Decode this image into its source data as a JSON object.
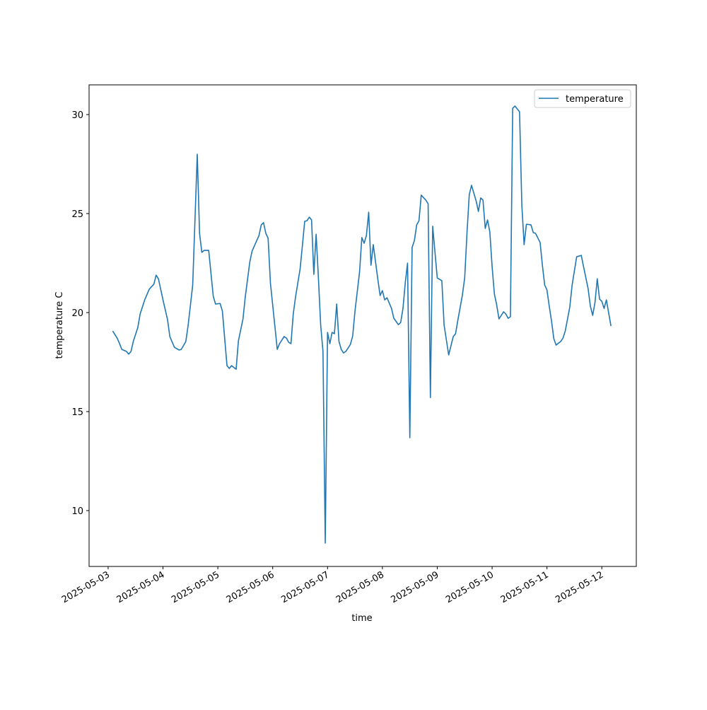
{
  "chart_data": {
    "type": "line",
    "xlabel": "time",
    "ylabel": "temperature C",
    "legend": "upper right",
    "xlim": [
      "2025-05-02 15:40",
      "2025-05-12 15:05"
    ],
    "xticks": [
      "2025-05-03",
      "2025-05-04",
      "2025-05-05",
      "2025-05-06",
      "2025-05-07",
      "2025-05-08",
      "2025-05-09",
      "2025-05-10",
      "2025-05-11",
      "2025-05-12"
    ],
    "ylim": [
      7.18,
      31.5
    ],
    "yticks": [
      10,
      15,
      20,
      25,
      30
    ],
    "x": [
      "2025-05-03 02:00",
      "2025-05-03 04:00",
      "2025-05-03 05:00",
      "2025-05-03 06:00",
      "2025-05-03 08:00",
      "2025-05-03 09:00",
      "2025-05-03 10:00",
      "2025-05-03 11:00",
      "2025-05-03 13:00",
      "2025-05-03 14:00",
      "2025-05-03 16:00",
      "2025-05-03 18:00",
      "2025-05-03 20:00",
      "2025-05-03 21:00",
      "2025-05-03 22:00",
      "2025-05-04 00:00",
      "2025-05-04 02:00",
      "2025-05-04 03:00",
      "2025-05-04 05:00",
      "2025-05-04 07:00",
      "2025-05-04 08:00",
      "2025-05-04 10:00",
      "2025-05-04 11:00",
      "2025-05-04 12:00",
      "2025-05-04 13:00",
      "2025-05-04 15:00",
      "2025-05-04 16:00",
      "2025-05-04 17:00",
      "2025-05-04 18:00",
      "2025-05-04 20:00",
      "2025-05-04 22:00",
      "2025-05-04 23:00",
      "2025-05-05 01:00",
      "2025-05-05 02:00",
      "2025-05-05 04:00",
      "2025-05-05 05:00",
      "2025-05-05 06:00",
      "2025-05-05 08:00",
      "2025-05-05 09:00",
      "2025-05-05 11:00",
      "2025-05-05 12:00",
      "2025-05-05 14:00",
      "2025-05-05 15:00",
      "2025-05-05 18:00",
      "2025-05-05 19:00",
      "2025-05-05 20:00",
      "2025-05-05 21:00",
      "2025-05-05 22:00",
      "2025-05-05 23:00",
      "2025-05-06 02:00",
      "2025-05-06 03:00",
      "2025-05-06 05:00",
      "2025-05-06 06:00",
      "2025-05-06 07:00",
      "2025-05-06 08:00",
      "2025-05-06 09:00",
      "2025-05-06 10:00",
      "2025-05-06 12:00",
      "2025-05-06 13:00",
      "2025-05-06 14:00",
      "2025-05-06 15:00",
      "2025-05-06 16:00",
      "2025-05-06 17:00",
      "2025-05-06 18:00",
      "2025-05-06 19:00",
      "2025-05-06 20:00",
      "2025-05-06 21:00",
      "2025-05-06 22:00",
      "2025-05-06 23:00",
      "2025-05-07 00:00",
      "2025-05-07 01:00",
      "2025-05-07 02:00",
      "2025-05-07 03:00",
      "2025-05-07 04:00",
      "2025-05-07 05:00",
      "2025-05-07 06:00",
      "2025-05-07 07:00",
      "2025-05-07 08:00",
      "2025-05-07 10:00",
      "2025-05-07 11:00",
      "2025-05-07 12:00",
      "2025-05-07 14:00",
      "2025-05-07 15:00",
      "2025-05-07 16:00",
      "2025-05-07 17:00",
      "2025-05-07 18:00",
      "2025-05-07 19:00",
      "2025-05-07 20:00",
      "2025-05-07 22:00",
      "2025-05-07 23:00",
      "2025-05-08 00:00",
      "2025-05-08 01:00",
      "2025-05-08 02:00",
      "2025-05-08 04:00",
      "2025-05-08 05:00",
      "2025-05-08 07:00",
      "2025-05-08 08:00",
      "2025-05-08 09:00",
      "2025-05-08 10:00",
      "2025-05-08 11:00",
      "2025-05-08 12:00",
      "2025-05-08 13:00",
      "2025-05-08 14:00",
      "2025-05-08 15:00",
      "2025-05-08 16:00",
      "2025-05-08 17:00",
      "2025-05-08 19:00",
      "2025-05-08 20:00",
      "2025-05-08 21:00",
      "2025-05-08 22:00",
      "2025-05-09 00:00",
      "2025-05-09 02:00",
      "2025-05-09 03:00",
      "2025-05-09 05:00",
      "2025-05-09 07:00",
      "2025-05-09 08:00",
      "2025-05-09 09:00",
      "2025-05-09 11:00",
      "2025-05-09 12:00",
      "2025-05-09 13:00",
      "2025-05-09 14:00",
      "2025-05-09 15:00",
      "2025-05-09 17:00",
      "2025-05-09 18:00",
      "2025-05-09 19:00",
      "2025-05-09 20:00",
      "2025-05-09 21:00",
      "2025-05-09 22:00",
      "2025-05-09 23:00",
      "2025-05-10 00:00",
      "2025-05-10 01:00",
      "2025-05-10 02:00",
      "2025-05-10 03:00",
      "2025-05-10 05:00",
      "2025-05-10 06:00",
      "2025-05-10 07:00",
      "2025-05-10 08:00",
      "2025-05-10 09:00",
      "2025-05-10 10:00",
      "2025-05-10 12:00",
      "2025-05-10 13:00",
      "2025-05-10 14:00",
      "2025-05-10 15:00",
      "2025-05-10 17:00",
      "2025-05-10 18:00",
      "2025-05-10 19:00",
      "2025-05-10 21:00",
      "2025-05-10 22:00",
      "2025-05-10 23:00",
      "2025-05-11 00:00",
      "2025-05-11 01:00",
      "2025-05-11 02:00",
      "2025-05-11 03:00",
      "2025-05-11 04:00",
      "2025-05-11 06:00",
      "2025-05-11 07:00",
      "2025-05-11 08:00",
      "2025-05-11 10:00",
      "2025-05-11 11:00",
      "2025-05-11 12:00",
      "2025-05-11 13:00",
      "2025-05-11 15:00",
      "2025-05-11 16:00",
      "2025-05-11 18:00",
      "2025-05-11 19:00",
      "2025-05-11 20:00",
      "2025-05-11 21:00",
      "2025-05-11 22:00",
      "2025-05-11 23:00",
      "2025-05-12 00:00",
      "2025-05-12 01:00",
      "2025-05-12 02:00",
      "2025-05-12 04:00"
    ],
    "series": [
      {
        "name": "temperature",
        "color": "#1f77b4",
        "values": [
          19.07,
          18.7,
          18.43,
          18.14,
          18.04,
          17.9,
          18.04,
          18.54,
          19.25,
          19.93,
          20.64,
          21.18,
          21.43,
          21.89,
          21.71,
          20.64,
          19.64,
          18.79,
          18.25,
          18.11,
          18.14,
          18.54,
          19.36,
          20.36,
          21.39,
          28.0,
          24.0,
          23.04,
          23.14,
          23.14,
          20.82,
          20.43,
          20.46,
          20.07,
          17.32,
          17.18,
          17.32,
          17.14,
          18.57,
          19.68,
          20.79,
          22.57,
          23.11,
          23.89,
          24.43,
          24.54,
          24.0,
          23.75,
          21.5,
          18.14,
          18.43,
          18.79,
          18.71,
          18.5,
          18.43,
          19.93,
          20.79,
          22.21,
          23.39,
          24.61,
          24.64,
          24.82,
          24.68,
          21.93,
          23.96,
          21.75,
          19.36,
          18.04,
          8.36,
          19.0,
          18.43,
          19.0,
          18.93,
          20.43,
          18.54,
          18.14,
          17.96,
          18.04,
          18.39,
          18.82,
          20.07,
          22.04,
          23.79,
          23.5,
          23.89,
          25.07,
          22.39,
          23.43,
          21.68,
          20.86,
          21.11,
          20.64,
          20.75,
          20.21,
          19.71,
          19.39,
          19.5,
          20.21,
          21.5,
          22.5,
          13.68,
          23.29,
          23.64,
          24.43,
          24.64,
          25.93,
          25.68,
          25.5,
          15.71,
          24.36,
          21.75,
          21.61,
          19.36,
          17.86,
          18.79,
          18.93,
          19.61,
          20.89,
          21.75,
          24.0,
          25.96,
          26.43,
          25.64,
          25.11,
          25.79,
          25.68,
          24.25,
          24.68,
          24.07,
          22.32,
          20.93,
          20.39,
          19.68,
          20.04,
          19.93,
          19.71,
          19.79,
          30.32,
          30.43,
          30.14,
          25.43,
          23.43,
          24.46,
          24.43,
          24.04,
          24.0,
          23.54,
          22.39,
          21.39,
          21.14,
          20.32,
          19.57,
          18.68,
          18.36,
          18.54,
          18.71,
          19.07,
          20.29,
          21.39,
          22.11,
          22.82,
          22.89,
          22.32,
          21.21,
          20.32,
          19.86,
          20.5,
          21.71,
          20.68,
          20.57,
          20.21,
          20.64,
          19.32
        ]
      }
    ]
  }
}
